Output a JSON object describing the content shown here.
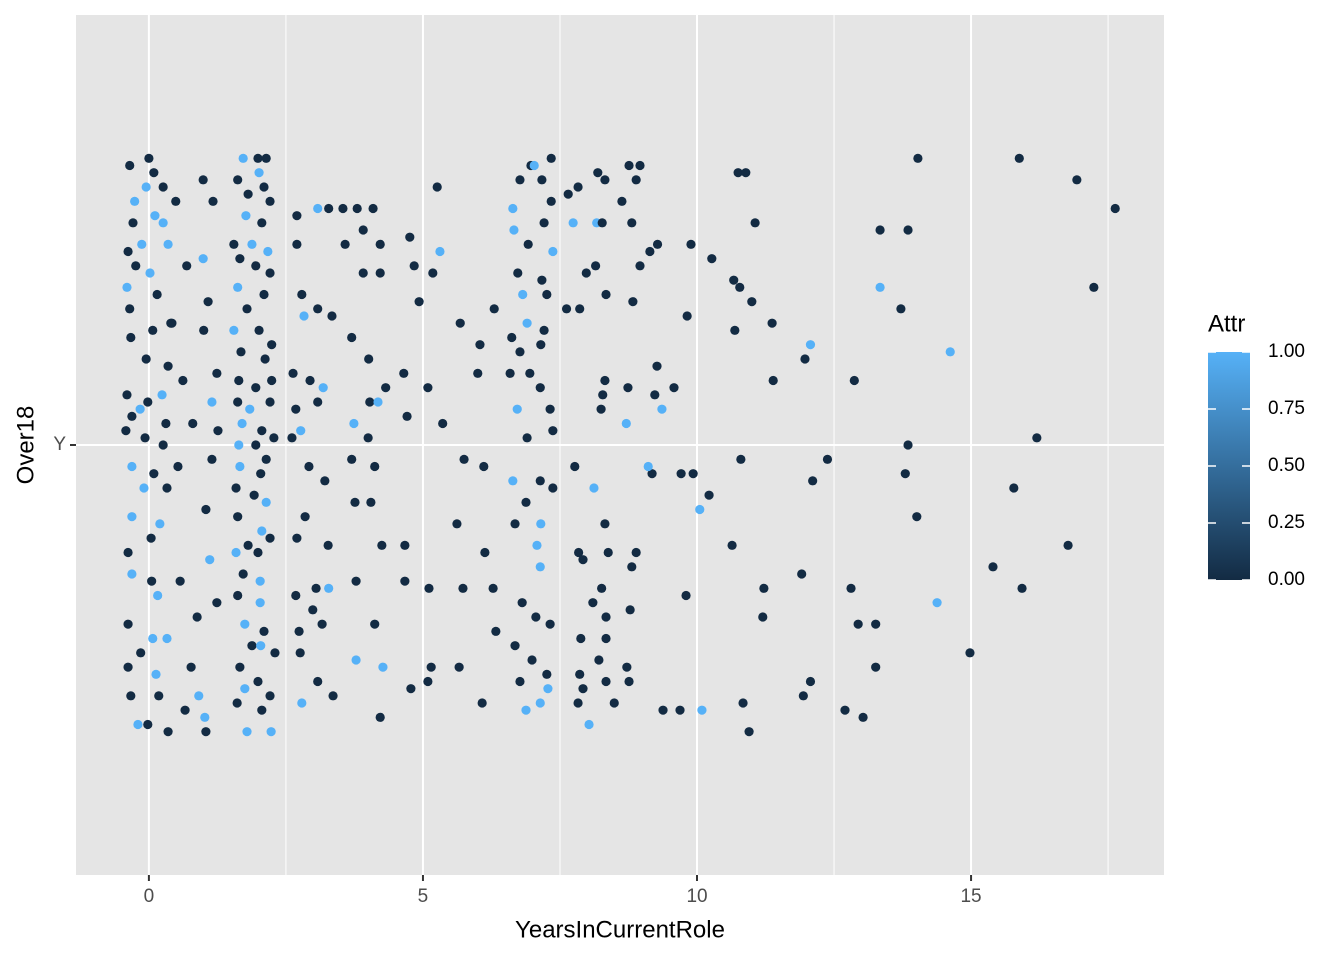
{
  "chart_data": {
    "type": "scatter",
    "x_label": "YearsInCurrentRole",
    "y_label": "Over18",
    "xlim": [
      -1.33,
      18.52
    ],
    "xticks": [
      0,
      5,
      10,
      15
    ],
    "x_minor_ticks": [
      2.5,
      7.5,
      12.5,
      17.5
    ],
    "ylim": [
      0.4,
      1.6
    ],
    "yticks": [
      {
        "value": 1,
        "label": "Y"
      }
    ],
    "grid": true,
    "background": "#e5e5e5",
    "x": [
      15.88,
      16.93,
      17.63,
      17.24,
      13.34,
      14.62,
      16.2,
      15.78,
      16.77,
      15.4,
      15.93,
      14.38,
      14.98,
      14.01,
      13.85,
      13.8,
      14.03,
      13.34,
      13.85,
      13.72,
      12.87,
      12.38,
      12.11,
      12.07,
      11.97,
      11.37,
      11.39,
      11.0,
      11.06,
      10.75,
      10.89,
      10.27,
      10.67,
      10.78,
      10.69,
      10.8,
      10.22,
      10.05,
      10.64,
      11.22,
      11.91,
      11.2,
      12.81,
      12.94,
      13.26,
      13.26,
      12.07,
      11.94,
      12.7,
      13.03,
      10.84,
      10.95,
      10.09,
      9.8,
      9.71,
      9.93,
      9.82,
      9.89,
      9.38,
      9.69,
      9.18,
      9.11,
      8.71,
      9.36,
      9.23,
      9.58,
      9.27,
      8.74,
      8.32,
      8.28,
      8.25,
      8.83,
      9.14,
      8.96,
      9.28,
      8.89,
      8.96,
      8.76,
      8.63,
      8.81,
      8.17,
      7.74,
      8.27,
      8.19,
      8.32,
      7.83,
      7.65,
      7.98,
      8.15,
      8.34,
      7.62,
      7.86,
      8.12,
      7.77,
      8.32,
      7.84,
      7.92,
      8.38,
      8.89,
      8.81,
      8.26,
      8.1,
      8.34,
      8.78,
      7.88,
      8.34,
      8.72,
      8.21,
      7.86,
      7.92,
      8.34,
      8.76,
      8.03,
      7.83,
      8.49,
      6.97,
      7.34,
      7.03,
      6.77,
      7.17,
      6.64,
      7.34,
      6.66,
      7.21,
      6.92,
      7.37,
      6.73,
      7.17,
      6.82,
      7.26,
      6.9,
      7.21,
      6.3,
      6.62,
      7.15,
      6.77,
      6.59,
      6.95,
      7.14,
      6.72,
      7.32,
      6.9,
      7.37,
      6.0,
      6.04,
      6.11,
      6.64,
      7.14,
      7.37,
      6.88,
      7.15,
      6.68,
      7.08,
      7.14,
      6.81,
      7.06,
      7.32,
      6.33,
      6.68,
      6.99,
      7.26,
      6.77,
      7.28,
      6.88,
      7.14,
      6.08,
      6.28,
      5.73,
      6.13,
      5.62,
      5.75,
      5.68,
      -0.35,
      0.0,
      0.09,
      -0.05,
      0.26,
      -0.26,
      0.11,
      -0.29,
      0.26,
      -0.13,
      -0.38,
      0.35,
      -0.24,
      0.02,
      -0.4,
      0.15,
      -0.35,
      0.4,
      0.07,
      -0.33,
      -0.05,
      0.35,
      -0.4,
      -0.02,
      -0.16,
      0.24,
      -0.31,
      0.31,
      -0.42,
      -0.07,
      0.26,
      -0.31,
      0.09,
      -0.09,
      0.33,
      -0.31,
      0.2,
      -0.38,
      0.04,
      -0.31,
      0.05,
      0.16,
      -0.38,
      0.07,
      0.33,
      -0.15,
      -0.38,
      0.13,
      -0.33,
      0.18,
      -0.2,
      -0.02,
      0.35,
      0.49,
      0.99,
      1.17,
      0.69,
      0.99,
      1.08,
      0.42,
      1.0,
      1.24,
      0.62,
      1.15,
      0.8,
      1.26,
      1.15,
      0.53,
      1.04,
      1.11,
      0.57,
      1.24,
      0.88,
      0.77,
      0.66,
      0.91,
      1.02,
      1.04,
      1.72,
      1.99,
      2.14,
      1.62,
      2.01,
      2.1,
      1.81,
      2.21,
      1.77,
      2.06,
      1.55,
      1.88,
      2.17,
      1.66,
      1.95,
      2.21,
      1.62,
      2.1,
      1.79,
      1.55,
      2.01,
      2.24,
      1.68,
      2.12,
      1.64,
      1.95,
      2.24,
      1.62,
      1.84,
      2.21,
      1.7,
      2.06,
      2.28,
      1.64,
      1.95,
      2.14,
      1.66,
      2.04,
      1.59,
      1.92,
      2.14,
      1.62,
      2.06,
      1.81,
      2.21,
      1.59,
      1.99,
      1.72,
      2.03,
      1.62,
      2.03,
      1.75,
      2.1,
      1.88,
      2.04,
      2.3,
      1.66,
      1.99,
      1.75,
      2.21,
      1.61,
      2.06,
      1.79,
      2.23,
      2.7,
      3.08,
      3.28,
      2.7,
      2.79,
      2.83,
      3.08,
      3.34,
      2.63,
      2.94,
      3.18,
      2.68,
      3.08,
      2.77,
      2.61,
      2.92,
      3.21,
      2.85,
      2.7,
      3.27,
      3.05,
      3.28,
      2.68,
      2.99,
      2.74,
      3.16,
      2.76,
      3.08,
      2.79,
      3.36,
      3.54,
      3.8,
      4.09,
      3.58,
      3.91,
      4.22,
      3.91,
      4.22,
      4.76,
      5.26,
      5.31,
      5.18,
      4.84,
      4.93,
      3.7,
      4.01,
      4.32,
      4.65,
      5.09,
      4.03,
      4.18,
      3.74,
      4.0,
      4.71,
      5.36,
      3.7,
      4.12,
      3.76,
      4.05,
      4.67,
      4.25,
      3.78,
      4.67,
      5.11,
      4.12,
      3.78,
      4.27,
      4.78,
      5.15,
      5.66,
      4.22,
      5.09
    ],
    "values": [
      1.4,
      1.37,
      1.33,
      1.22,
      1.22,
      1.13,
      1.01,
      0.94,
      0.86,
      0.83,
      0.8,
      0.78,
      0.71,
      0.9,
      1.0,
      0.96,
      1.4,
      1.3,
      1.3,
      1.19,
      1.09,
      0.98,
      0.95,
      1.14,
      1.12,
      1.17,
      1.09,
      1.2,
      1.31,
      1.38,
      1.38,
      1.26,
      1.23,
      1.22,
      1.16,
      0.98,
      0.93,
      0.91,
      0.86,
      0.8,
      0.82,
      0.76,
      0.8,
      0.75,
      0.75,
      0.69,
      0.67,
      0.65,
      0.63,
      0.62,
      0.64,
      0.6,
      0.63,
      0.79,
      0.96,
      0.96,
      1.18,
      1.28,
      0.63,
      0.63,
      0.96,
      0.97,
      1.03,
      1.05,
      1.07,
      1.08,
      1.11,
      1.08,
      1.09,
      1.07,
      1.05,
      1.2,
      1.27,
      1.25,
      1.28,
      1.37,
      1.39,
      1.39,
      1.34,
      1.31,
      1.31,
      1.31,
      1.31,
      1.38,
      1.37,
      1.36,
      1.35,
      1.24,
      1.25,
      1.21,
      1.19,
      1.19,
      0.94,
      0.97,
      0.89,
      0.85,
      0.84,
      0.85,
      0.85,
      0.83,
      0.8,
      0.78,
      0.76,
      0.77,
      0.73,
      0.73,
      0.69,
      0.7,
      0.68,
      0.66,
      0.67,
      0.67,
      0.61,
      0.64,
      0.64,
      1.39,
      1.4,
      1.39,
      1.37,
      1.37,
      1.33,
      1.34,
      1.3,
      1.31,
      1.28,
      1.27,
      1.24,
      1.23,
      1.21,
      1.21,
      1.17,
      1.16,
      1.19,
      1.15,
      1.14,
      1.13,
      1.1,
      1.1,
      1.08,
      1.05,
      1.05,
      1.01,
      1.02,
      1.1,
      1.14,
      0.97,
      0.95,
      0.95,
      0.94,
      0.92,
      0.89,
      0.89,
      0.86,
      0.83,
      0.78,
      0.76,
      0.75,
      0.74,
      0.72,
      0.7,
      0.68,
      0.67,
      0.66,
      0.63,
      0.64,
      0.64,
      0.8,
      0.8,
      0.85,
      0.89,
      0.98,
      1.17,
      1.39,
      1.4,
      1.38,
      1.36,
      1.36,
      1.34,
      1.32,
      1.31,
      1.31,
      1.28,
      1.27,
      1.28,
      1.25,
      1.24,
      1.22,
      1.21,
      1.19,
      1.17,
      1.16,
      1.15,
      1.12,
      1.11,
      1.07,
      1.06,
      1.05,
      1.07,
      1.04,
      1.03,
      1.02,
      1.01,
      1.0,
      0.97,
      0.96,
      0.94,
      0.94,
      0.9,
      0.89,
      0.85,
      0.87,
      0.82,
      0.81,
      0.79,
      0.75,
      0.73,
      0.73,
      0.71,
      0.69,
      0.68,
      0.65,
      0.65,
      0.61,
      0.61,
      0.6,
      1.34,
      1.37,
      1.34,
      1.25,
      1.26,
      1.2,
      1.17,
      1.16,
      1.1,
      1.09,
      1.06,
      1.03,
      1.02,
      0.98,
      0.97,
      0.91,
      0.84,
      0.81,
      0.78,
      0.76,
      0.69,
      0.63,
      0.65,
      0.62,
      0.6,
      1.4,
      1.4,
      1.4,
      1.37,
      1.38,
      1.36,
      1.35,
      1.34,
      1.32,
      1.31,
      1.28,
      1.28,
      1.27,
      1.26,
      1.25,
      1.24,
      1.22,
      1.21,
      1.19,
      1.16,
      1.16,
      1.14,
      1.13,
      1.12,
      1.09,
      1.08,
      1.09,
      1.06,
      1.05,
      1.06,
      1.03,
      1.02,
      1.01,
      1.0,
      1.0,
      0.98,
      0.97,
      0.96,
      0.94,
      0.93,
      0.92,
      0.9,
      0.88,
      0.86,
      0.87,
      0.85,
      0.85,
      0.82,
      0.81,
      0.79,
      0.78,
      0.75,
      0.74,
      0.72,
      0.72,
      0.71,
      0.69,
      0.67,
      0.66,
      0.65,
      0.64,
      0.63,
      0.6,
      0.6,
      1.32,
      1.33,
      1.33,
      1.28,
      1.21,
      1.18,
      1.19,
      1.18,
      1.1,
      1.09,
      1.08,
      1.05,
      1.06,
      1.02,
      1.01,
      0.97,
      0.95,
      0.9,
      0.87,
      0.86,
      0.8,
      0.8,
      0.79,
      0.77,
      0.74,
      0.75,
      0.71,
      0.67,
      0.64,
      0.65,
      1.33,
      1.33,
      1.33,
      1.28,
      1.3,
      1.28,
      1.24,
      1.24,
      1.29,
      1.36,
      1.27,
      1.24,
      1.25,
      1.2,
      1.15,
      1.12,
      1.08,
      1.1,
      1.08,
      1.06,
      1.06,
      1.03,
      1.01,
      1.04,
      1.03,
      0.98,
      0.97,
      0.92,
      0.92,
      0.86,
      0.86,
      0.81,
      0.81,
      0.8,
      0.75,
      0.7,
      0.69,
      0.66,
      0.69,
      0.69,
      0.62,
      0.67
    ],
    "attr": [
      0,
      0,
      0,
      0,
      1,
      1,
      0,
      0,
      0,
      0,
      0,
      1,
      0,
      0,
      0,
      0,
      0,
      0,
      0,
      0,
      0,
      0,
      0,
      1,
      0,
      0,
      0,
      0,
      0,
      0,
      0,
      0,
      0,
      0,
      0,
      0,
      0,
      1,
      0,
      0,
      0,
      0,
      0,
      0,
      0,
      0,
      0,
      0,
      0,
      0,
      0,
      0,
      1,
      0,
      0,
      0,
      0,
      0,
      0,
      0,
      0,
      1,
      1,
      1,
      0,
      0,
      0,
      0,
      0,
      0,
      0,
      0,
      0,
      0,
      0,
      0,
      0,
      0,
      0,
      0,
      1,
      1,
      0,
      0,
      0,
      0,
      0,
      0,
      0,
      0,
      0,
      0,
      1,
      0,
      0,
      0,
      0,
      0,
      0,
      0,
      0,
      0,
      0,
      0,
      0,
      0,
      0,
      0,
      0,
      0,
      0,
      0,
      1,
      0,
      0,
      0,
      0,
      1,
      0,
      0,
      1,
      0,
      1,
      0,
      0,
      1,
      0,
      0,
      1,
      0,
      1,
      0,
      0,
      0,
      0,
      0,
      0,
      0,
      0,
      1,
      0,
      0,
      0,
      0,
      0,
      0,
      1,
      0,
      0,
      0,
      1,
      0,
      1,
      1,
      0,
      0,
      0,
      0,
      0,
      0,
      0,
      0,
      1,
      1,
      1,
      0,
      0,
      0,
      0,
      0,
      0,
      0,
      0,
      0,
      0,
      1,
      0,
      1,
      1,
      0,
      1,
      1,
      0,
      1,
      0,
      1,
      1,
      0,
      0,
      0,
      0,
      0,
      0,
      0,
      0,
      0,
      1,
      1,
      0,
      0,
      0,
      0,
      0,
      1,
      0,
      1,
      0,
      1,
      1,
      0,
      0,
      1,
      0,
      1,
      0,
      1,
      1,
      0,
      0,
      1,
      0,
      0,
      1,
      0,
      0,
      0,
      0,
      0,
      0,
      1,
      0,
      0,
      0,
      0,
      0,
      1,
      0,
      0,
      0,
      0,
      0,
      1,
      0,
      0,
      0,
      0,
      0,
      1,
      1,
      0,
      1,
      0,
      0,
      0,
      1,
      0,
      0,
      0,
      1,
      0,
      0,
      1,
      1,
      0,
      0,
      0,
      1,
      0,
      0,
      1,
      0,
      0,
      0,
      0,
      0,
      0,
      0,
      0,
      1,
      0,
      1,
      0,
      0,
      1,
      0,
      0,
      1,
      0,
      0,
      0,
      1,
      0,
      1,
      0,
      0,
      1,
      0,
      0,
      1,
      0,
      1,
      1,
      0,
      0,
      1,
      0,
      0,
      0,
      1,
      0,
      0,
      0,
      1,
      1,
      0,
      1,
      0,
      0,
      0,
      1,
      0,
      0,
      0,
      0,
      1,
      0,
      0,
      1,
      0,
      0,
      0,
      0,
      0,
      0,
      0,
      1,
      0,
      0,
      0,
      0,
      0,
      0,
      1,
      0,
      0,
      0,
      0,
      0,
      0,
      0,
      0,
      0,
      0,
      0,
      1,
      0,
      0,
      0,
      0,
      0,
      0,
      0,
      0,
      0,
      1,
      1,
      0,
      0,
      0,
      0,
      0,
      0,
      0,
      0,
      0,
      0,
      0,
      0,
      0,
      1,
      1,
      0,
      0,
      0,
      0,
      0
    ],
    "color_bar": {
      "title": "Attr",
      "lim": [
        0,
        1
      ],
      "low": "#132B43",
      "high": "#56B1F7",
      "ticks": [
        {
          "value": 0,
          "label": "0.00"
        },
        {
          "value": 0.25,
          "label": "0.25"
        },
        {
          "value": 0.5,
          "label": "0.50"
        },
        {
          "value": 0.75,
          "label": "0.75"
        },
        {
          "value": 1,
          "label": "1.00"
        }
      ]
    }
  }
}
